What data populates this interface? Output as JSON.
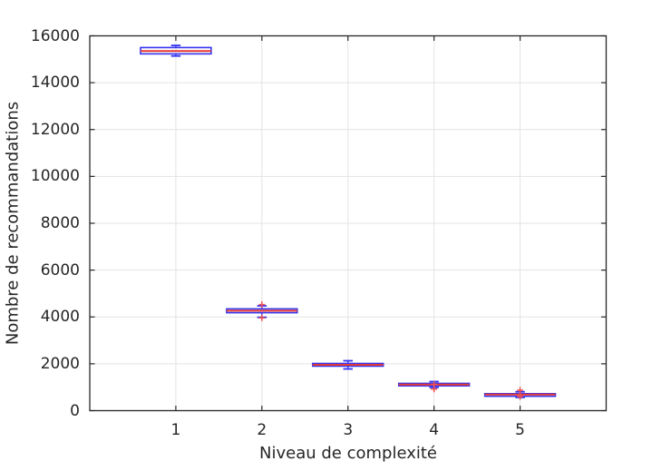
{
  "figure": {
    "background": "#ffffff"
  },
  "chart_data": {
    "type": "boxplot",
    "title": "",
    "xlabel": "Niveau de complexité",
    "ylabel": "Nombre de recommandations",
    "xlim": [
      0,
      6
    ],
    "ylim": [
      0,
      16000
    ],
    "xticks": [
      1,
      2,
      3,
      4,
      5
    ],
    "yticks": [
      0,
      2000,
      4000,
      6000,
      8000,
      10000,
      12000,
      14000,
      16000
    ],
    "grid": true,
    "legend_position": "none",
    "colors": {
      "box": "#3434f0",
      "median": "#e53935",
      "whisker": "#3434f0",
      "outlier": "#f05050",
      "grid": "#e3e3e3",
      "axis": "#262626",
      "text": "#262626",
      "background": "#ffffff"
    },
    "groups": [
      {
        "x": 1,
        "whisker_low": 15140,
        "q1": 15230,
        "median": 15350,
        "q3": 15500,
        "whisker_high": 15590,
        "outliers": []
      },
      {
        "x": 2,
        "whisker_low": 3985,
        "q1": 4180,
        "median": 4265,
        "q3": 4345,
        "whisker_high": 4475,
        "outliers": [
          4530,
          3960
        ]
      },
      {
        "x": 3,
        "whisker_low": 1780,
        "q1": 1900,
        "median": 1955,
        "q3": 2015,
        "whisker_high": 2130,
        "outliers": []
      },
      {
        "x": 4,
        "whisker_low": 990,
        "q1": 1060,
        "median": 1115,
        "q3": 1165,
        "whisker_high": 1240,
        "outliers": [
          1120,
          920
        ]
      },
      {
        "x": 5,
        "whisker_low": 565,
        "q1": 615,
        "median": 690,
        "q3": 725,
        "whisker_high": 805,
        "outliers": [
          870,
          600
        ]
      }
    ]
  }
}
